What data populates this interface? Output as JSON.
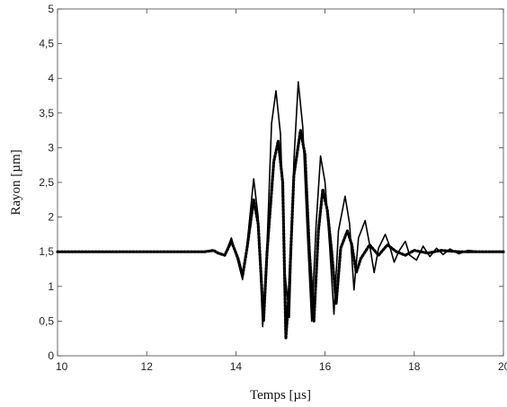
{
  "chart_data": {
    "type": "line",
    "title": "",
    "xlabel": "Temps [µs]",
    "ylabel": "Rayon [µm]",
    "xlim": [
      10,
      20
    ],
    "ylim": [
      0,
      5
    ],
    "x_ticks": [
      10,
      12,
      14,
      16,
      18,
      20
    ],
    "x_tick_labels": [
      "10",
      "12",
      "14",
      "16",
      "18",
      "20"
    ],
    "y_ticks": [
      0,
      0.5,
      1,
      1.5,
      2,
      2.5,
      3,
      3.5,
      4,
      4.5,
      5
    ],
    "y_tick_labels": [
      "0",
      "0,5",
      "1",
      "1,5",
      "2",
      "2,5",
      "3",
      "3,5",
      "4",
      "4,5",
      "5"
    ],
    "grid": false,
    "legend": "none",
    "series": [
      {
        "style": "solid",
        "color": "#000000",
        "x": [
          10.0,
          13.3,
          13.5,
          13.6,
          13.75,
          13.9,
          14.05,
          14.15,
          14.25,
          14.4,
          14.5,
          14.6,
          14.7,
          14.8,
          14.9,
          15.0,
          15.1,
          15.2,
          15.3,
          15.4,
          15.5,
          15.6,
          15.7,
          15.8,
          15.9,
          16.0,
          16.1,
          16.2,
          16.3,
          16.45,
          16.55,
          16.65,
          16.75,
          16.9,
          17.0,
          17.1,
          17.2,
          17.35,
          17.45,
          17.55,
          17.65,
          17.8,
          17.9,
          18.05,
          18.2,
          18.35,
          18.5,
          18.65,
          18.8,
          19.0,
          19.2,
          19.5,
          20.0
        ],
        "y": [
          1.5,
          1.5,
          1.52,
          1.48,
          1.45,
          1.7,
          1.35,
          1.1,
          1.6,
          2.55,
          2.0,
          0.42,
          1.6,
          3.35,
          3.82,
          3.2,
          1.2,
          0.55,
          2.8,
          3.95,
          3.3,
          1.8,
          0.5,
          1.9,
          2.88,
          2.5,
          1.6,
          0.6,
          1.8,
          2.3,
          1.9,
          0.95,
          1.7,
          1.95,
          1.6,
          1.2,
          1.55,
          1.75,
          1.58,
          1.35,
          1.5,
          1.65,
          1.45,
          1.38,
          1.58,
          1.43,
          1.55,
          1.46,
          1.54,
          1.47,
          1.52,
          1.5,
          1.5
        ]
      },
      {
        "style": "dotted",
        "color": "#000000",
        "x": [
          10.0,
          13.3,
          13.5,
          13.6,
          13.75,
          13.9,
          14.05,
          14.15,
          14.25,
          14.4,
          14.5,
          14.62,
          14.7,
          14.85,
          14.95,
          15.05,
          15.12,
          15.2,
          15.3,
          15.45,
          15.55,
          15.65,
          15.75,
          15.85,
          15.95,
          16.05,
          16.15,
          16.25,
          16.35,
          16.5,
          16.6,
          16.7,
          16.8,
          17.0,
          17.2,
          17.4,
          17.6,
          17.8,
          18.0,
          18.3,
          18.6,
          19.0,
          20.0
        ],
        "y": [
          1.5,
          1.5,
          1.52,
          1.48,
          1.45,
          1.65,
          1.4,
          1.15,
          1.55,
          2.25,
          1.9,
          0.5,
          1.5,
          2.8,
          3.1,
          2.5,
          0.25,
          1.0,
          2.6,
          3.25,
          2.9,
          1.5,
          0.5,
          1.8,
          2.4,
          2.1,
          1.5,
          0.75,
          1.55,
          1.8,
          1.6,
          1.2,
          1.4,
          1.6,
          1.45,
          1.6,
          1.5,
          1.45,
          1.52,
          1.48,
          1.52,
          1.5,
          1.5
        ]
      }
    ]
  }
}
